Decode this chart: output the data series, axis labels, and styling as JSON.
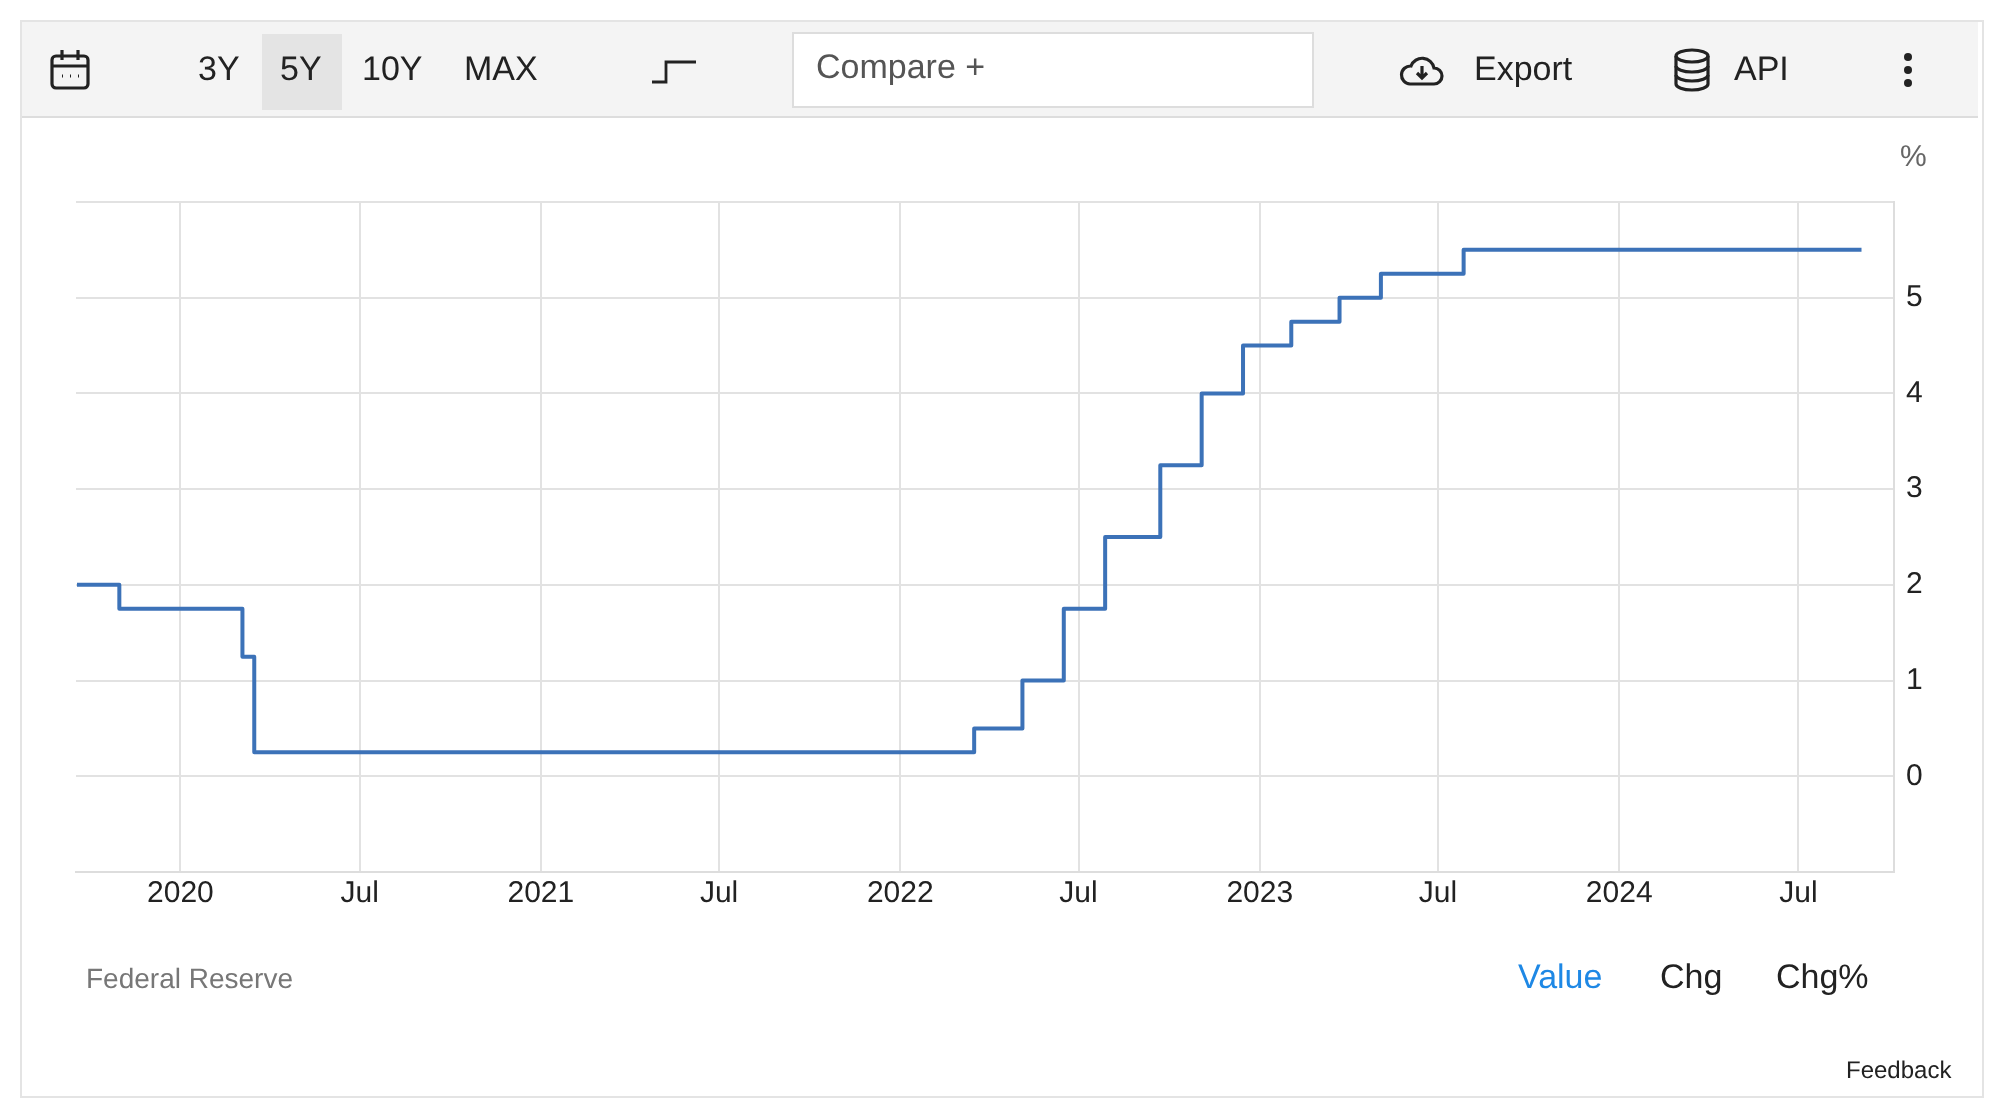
{
  "chart_data": {
    "type": "step",
    "ylabel": "%",
    "x": [
      "2019-09-18",
      "2019-10-31",
      "2020-03-04",
      "2020-03-16",
      "2022-03-17",
      "2022-05-05",
      "2022-06-16",
      "2022-07-28",
      "2022-09-22",
      "2022-11-03",
      "2022-12-15",
      "2023-02-02",
      "2023-03-23",
      "2023-05-04",
      "2023-07-27",
      "2024-09-03"
    ],
    "series": [
      {
        "color": "#3c72b8",
        "values": [
          2.0,
          1.75,
          1.25,
          0.25,
          0.5,
          1.0,
          1.75,
          2.5,
          3.25,
          4.0,
          4.5,
          4.75,
          5.0,
          5.25,
          5.5,
          5.5
        ]
      }
    ],
    "xlim": [
      "2019-09-17",
      "2024-10-06"
    ],
    "xticks": [
      {
        "value": "2020-01-01",
        "label": "2020"
      },
      {
        "value": "2020-07-01",
        "label": "Jul"
      },
      {
        "value": "2021-01-01",
        "label": "2021"
      },
      {
        "value": "2021-07-01",
        "label": "Jul"
      },
      {
        "value": "2022-01-01",
        "label": "2022"
      },
      {
        "value": "2022-07-01",
        "label": "Jul"
      },
      {
        "value": "2023-01-01",
        "label": "2023"
      },
      {
        "value": "2023-07-01",
        "label": "Jul"
      },
      {
        "value": "2024-01-01",
        "label": "2024"
      },
      {
        "value": "2024-07-01",
        "label": "Jul"
      }
    ],
    "ylim": [
      -1,
      6
    ],
    "yticks": [
      {
        "value": -1,
        "label": null
      },
      0,
      1,
      2,
      3,
      4,
      5,
      {
        "value": 6,
        "label": null
      }
    ],
    "grid": true,
    "legend": false,
    "annotations": [
      "3Y",
      "5Y",
      "10Y",
      "MAX",
      "Compare +",
      "Export",
      "API",
      "Federal Reserve",
      "Value",
      "Chg",
      "Chg%",
      "Feedback"
    ]
  }
}
